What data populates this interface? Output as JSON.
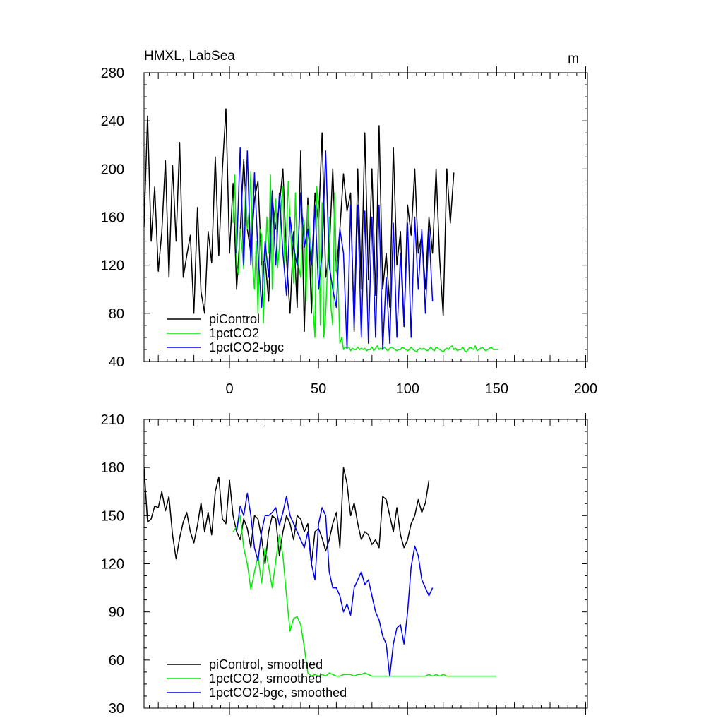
{
  "chart_data": [
    {
      "type": "line",
      "title": "HMXL, LabSea",
      "units": "m",
      "xlabel": "",
      "ylabel": "",
      "xlim": [
        -48,
        201
      ],
      "ylim": [
        40,
        280
      ],
      "x_ticks": [
        0,
        50,
        100,
        150,
        200
      ],
      "y_ticks": [
        40,
        80,
        120,
        160,
        200,
        240,
        280
      ],
      "legend_position": "bottom-left",
      "series": [
        {
          "name": "piControl",
          "color": "#000000",
          "x_start": -48,
          "x_step": 2,
          "values": [
            152,
            244,
            140,
            185,
            115,
            148,
            207,
            110,
            203,
            140,
            222,
            110,
            128,
            145,
            80,
            168,
            98,
            80,
            148,
            122,
            210,
            128,
            200,
            250,
            130,
            188,
            100,
            148,
            208,
            150,
            130,
            175,
            190,
            120,
            125,
            90,
            175,
            150,
            170,
            200,
            125,
            80,
            148,
            85,
            215,
            65,
            176,
            80,
            180,
            155,
            230,
            110,
            130,
            200,
            115,
            150,
            196,
            165,
            180,
            65,
            200,
            100,
            230,
            108,
            200,
            95,
            236,
            100,
            130,
            85,
            218,
            120,
            148,
            69,
            170,
            145,
            200,
            130,
            145,
            100,
            160,
            130,
            200,
            125,
            78,
            200,
            155,
            197
          ]
        },
        {
          "name": "1pctCO2",
          "color": "#00ee00",
          "x_start": 2,
          "x_step": 1,
          "values": [
            155,
            195,
            120,
            112,
            150,
            135,
            117,
            185,
            150,
            165,
            198,
            120,
            100,
            140,
            80,
            150,
            145,
            72,
            120,
            160,
            130,
            195,
            100,
            150,
            175,
            118,
            135,
            170,
            185,
            120,
            145,
            190,
            158,
            130,
            105,
            180,
            132,
            118,
            110,
            160,
            155,
            90,
            170,
            145,
            130,
            82,
            60,
            185,
            170,
            70,
            172,
            60,
            80,
            118,
            160,
            85,
            70,
            180,
            118,
            105,
            55,
            60,
            50,
            52,
            51,
            52,
            49,
            51,
            50,
            50,
            52,
            50,
            51,
            50,
            51,
            49,
            50,
            50,
            52,
            49,
            51,
            53,
            50,
            51,
            50,
            52,
            50,
            49,
            51,
            52,
            51,
            50,
            49,
            50,
            50,
            52,
            51,
            50,
            49,
            50,
            52,
            50,
            49,
            48,
            50,
            51,
            50,
            51,
            50,
            49,
            50,
            52,
            50,
            49,
            52,
            51,
            50,
            49,
            48,
            50,
            51,
            50,
            52,
            53,
            50,
            51,
            49,
            50,
            50,
            52,
            49,
            48,
            50,
            52,
            51,
            50,
            53,
            49,
            50,
            51,
            52,
            50,
            49,
            50,
            51,
            52,
            50,
            50,
            50,
            50
          ]
        },
        {
          "name": "1pctCO2-bgc",
          "color": "#0000ee",
          "x_start": 4,
          "x_step": 2,
          "values": [
            130,
            218,
            120,
            215,
            120,
            197,
            130,
            85,
            140,
            110,
            182,
            120,
            180,
            130,
            95,
            160,
            135,
            120,
            180,
            135,
            150,
            120,
            170,
            100,
            130,
            215,
            120,
            100,
            85,
            150,
            130,
            50,
            170,
            70,
            170,
            60,
            165,
            55,
            160,
            60,
            170,
            50,
            110,
            55,
            155,
            60,
            130,
            70,
            155,
            60,
            160,
            100,
            150,
            80,
            150,
            90
          ]
        }
      ]
    },
    {
      "type": "line",
      "title": "",
      "xlabel": "",
      "ylabel": "",
      "xlim": [
        -48,
        201
      ],
      "ylim": [
        30,
        210
      ],
      "y_ticks": [
        30,
        60,
        90,
        120,
        150,
        180,
        210
      ],
      "legend_position": "bottom-left",
      "series": [
        {
          "name": "piControl, smoothed",
          "color": "#000000",
          "x_start": -48,
          "x_step": 2,
          "values": [
            180,
            146,
            148,
            156,
            155,
            165,
            153,
            162,
            138,
            123,
            136,
            146,
            152,
            140,
            133,
            144,
            158,
            140,
            152,
            138,
            165,
            174,
            148,
            145,
            172,
            150,
            140,
            135,
            148,
            142,
            130,
            150,
            148,
            136,
            120,
            140,
            150,
            148,
            125,
            140,
            150,
            145,
            135,
            150,
            148,
            140,
            145,
            120,
            140,
            142,
            136,
            128,
            135,
            145,
            152,
            130,
            180,
            170,
            150,
            158,
            145,
            135,
            140,
            138,
            132,
            135,
            130,
            162,
            160,
            150,
            140,
            155,
            138,
            130,
            135,
            145,
            150,
            160,
            152,
            158,
            172
          ]
        },
        {
          "name": "1pctCO2, smoothed",
          "color": "#00ee00",
          "x_start": 2,
          "x_step": 2,
          "values": [
            140,
            143,
            150,
            130,
            120,
            104,
            115,
            125,
            108,
            130,
            118,
            105,
            122,
            138,
            125,
            100,
            78,
            86,
            87,
            82,
            68,
            52,
            50,
            51,
            50,
            51,
            50,
            52,
            51,
            50,
            50,
            51,
            51,
            51,
            50,
            51,
            51,
            52,
            51,
            50,
            50,
            50,
            50,
            50,
            50,
            50,
            50,
            50,
            50,
            50,
            50,
            50,
            50,
            50,
            50,
            51,
            50,
            51,
            50,
            51,
            50,
            50,
            50,
            50,
            50,
            50,
            50,
            50,
            50,
            50,
            50,
            50,
            50,
            50,
            50
          ]
        },
        {
          "name": "1pctCO2-bgc, smoothed",
          "color": "#0000ee",
          "x_start": 4,
          "x_step": 2,
          "values": [
            140,
            156,
            150,
            164,
            150,
            130,
            122,
            140,
            150,
            150,
            152,
            155,
            144,
            152,
            162,
            150,
            145,
            140,
            135,
            130,
            140,
            120,
            110,
            145,
            155,
            150,
            115,
            105,
            105,
            100,
            90,
            95,
            88,
            105,
            110,
            115,
            107,
            110,
            100,
            90,
            85,
            75,
            70,
            50,
            70,
            80,
            82,
            70,
            90,
            118,
            131,
            125,
            110,
            105,
            100,
            105
          ]
        }
      ]
    }
  ]
}
